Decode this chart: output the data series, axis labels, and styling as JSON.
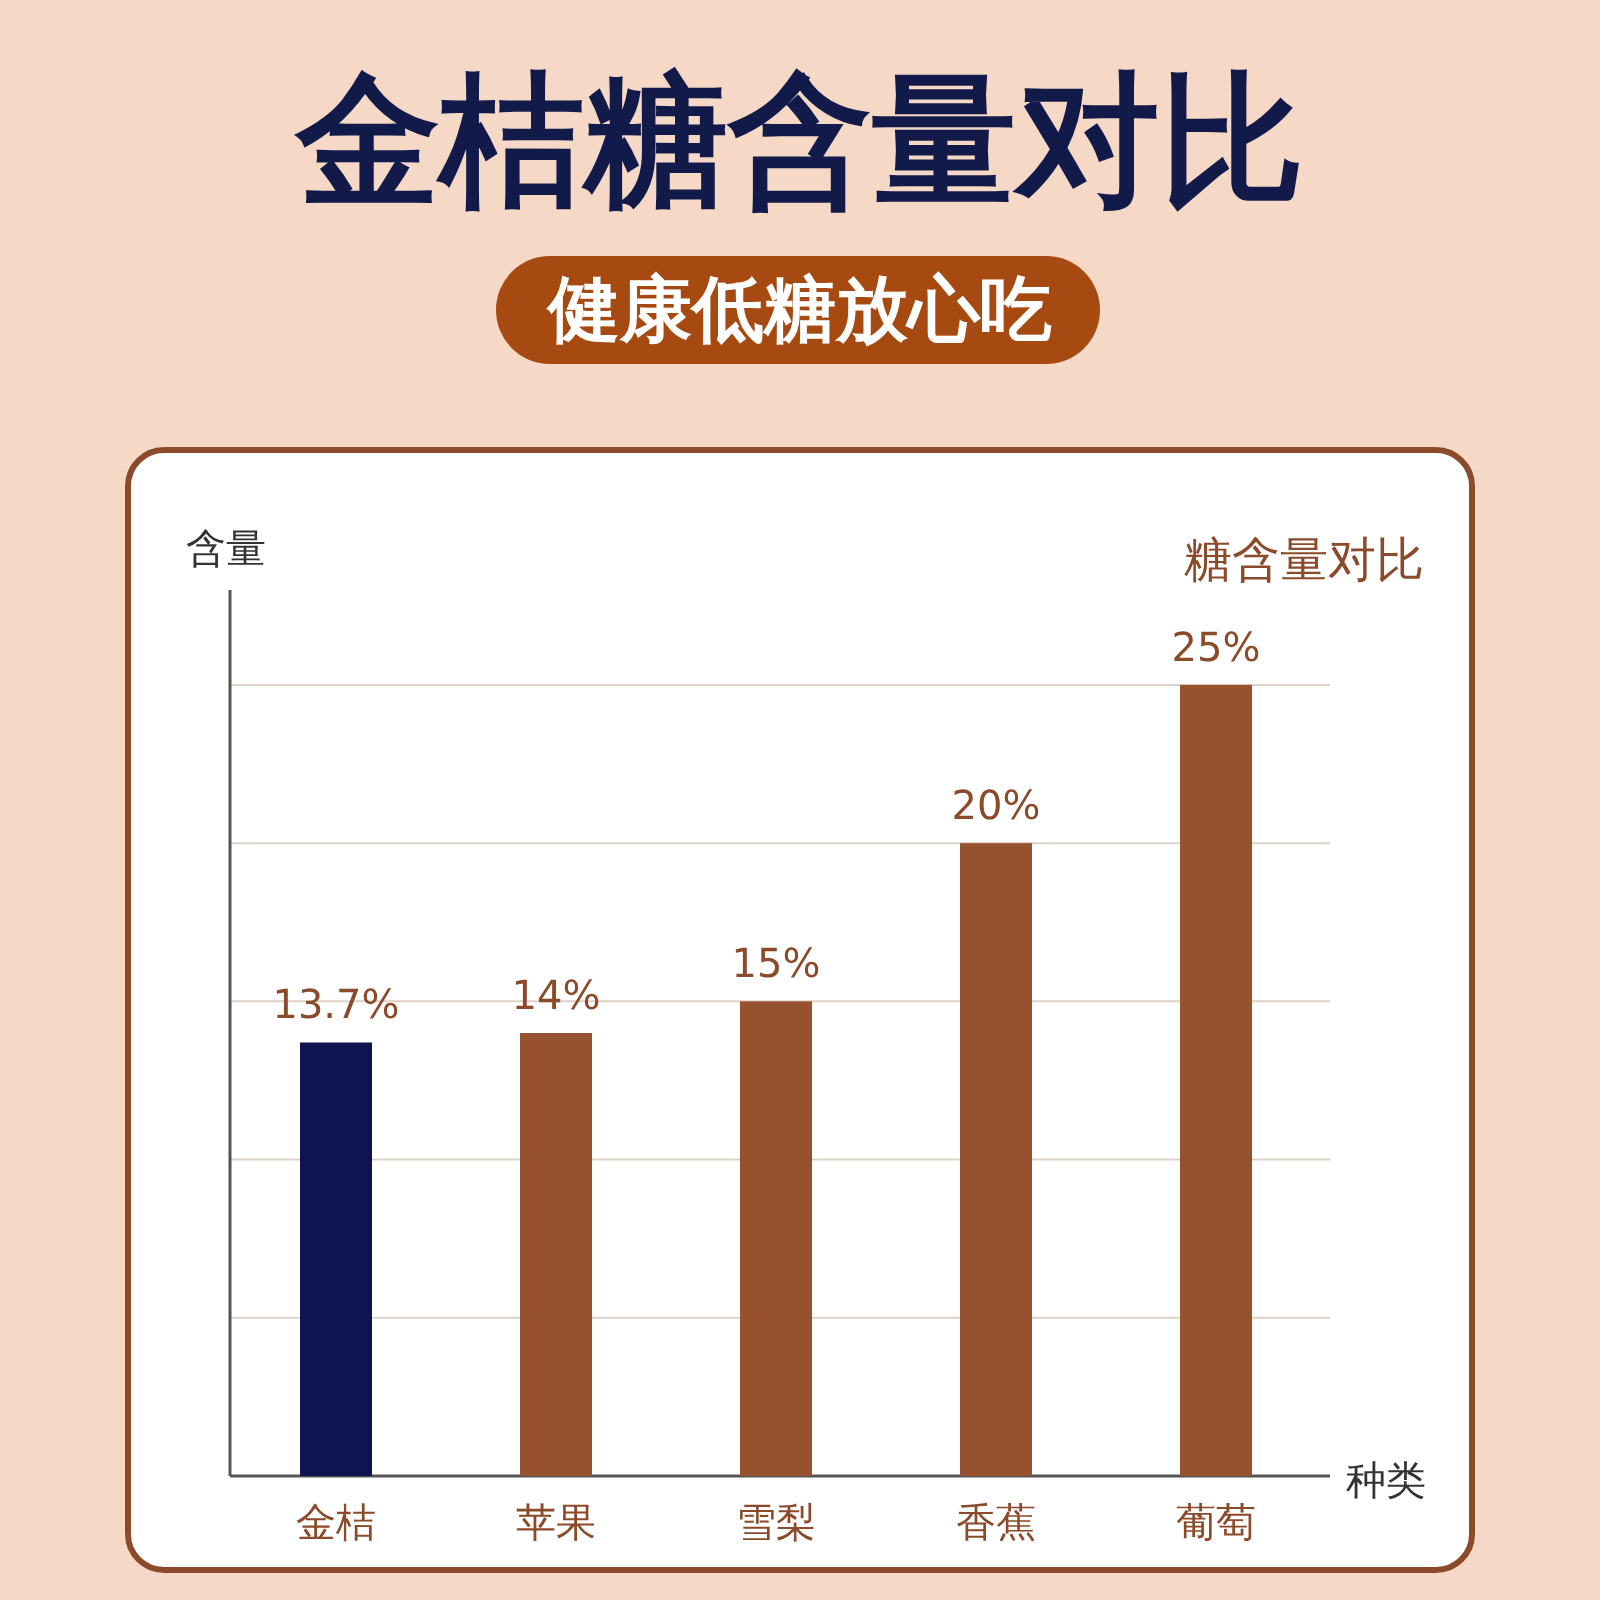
{
  "chart_data": {
    "type": "bar",
    "title": "金桔糖含量对比",
    "subtitle": "健康低糖放心吃",
    "annotations": [
      "糖含量对比"
    ],
    "xlabel": "种类",
    "ylabel": "含量",
    "categories": [
      "金桔",
      "苹果",
      "雪梨",
      "香蕉",
      "葡萄"
    ],
    "values": [
      13.7,
      14,
      15,
      20,
      25
    ],
    "colors": [
      "#0f1450",
      "#96522f",
      "#96522f",
      "#96522f",
      "#96522f"
    ],
    "value_labels": [
      "13.7%",
      "14%",
      "15%",
      "20%",
      "25%"
    ],
    "ylim": [
      0,
      28
    ],
    "yticks": [
      {
        "value": 5,
        "label": null
      },
      {
        "value": 10,
        "label": null
      },
      {
        "value": 15,
        "label": null
      },
      {
        "value": 20,
        "label": null
      },
      {
        "value": 25,
        "label": null
      }
    ],
    "grid": "y",
    "tick_labels": "x"
  }
}
